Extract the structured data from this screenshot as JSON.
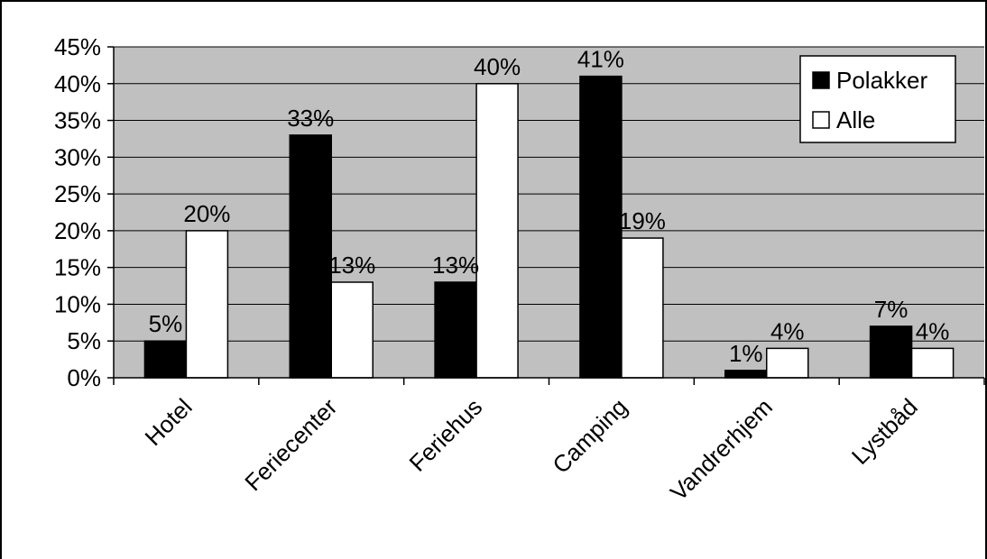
{
  "chart_data": {
    "type": "bar",
    "categories": [
      "Hotel",
      "Feriecenter",
      "Feriehus",
      "Camping",
      "Vandrerhjem",
      "Lystbåd"
    ],
    "series": [
      {
        "name": "Polakker",
        "color": "#000000",
        "values": [
          5,
          33,
          13,
          41,
          1,
          7
        ],
        "value_labels": [
          "5%",
          "33%",
          "13%",
          "41%",
          "1%",
          "7%"
        ]
      },
      {
        "name": "Alle",
        "color": "#ffffff",
        "values": [
          20,
          13,
          40,
          19,
          4,
          4
        ],
        "value_labels": [
          "20%",
          "13%",
          "40%",
          "19%",
          "4%",
          "4%"
        ]
      }
    ],
    "ylim": [
      0,
      45
    ],
    "yticks": [
      0,
      5,
      10,
      15,
      20,
      25,
      30,
      35,
      40,
      45
    ],
    "ytick_labels": [
      "0%",
      "5%",
      "10%",
      "15%",
      "20%",
      "25%",
      "30%",
      "35%",
      "40%",
      "45%"
    ],
    "grid": true,
    "plot_background": "#c0c0c0",
    "legend_position": "top-right",
    "title": "",
    "xlabel": "",
    "ylabel": ""
  }
}
